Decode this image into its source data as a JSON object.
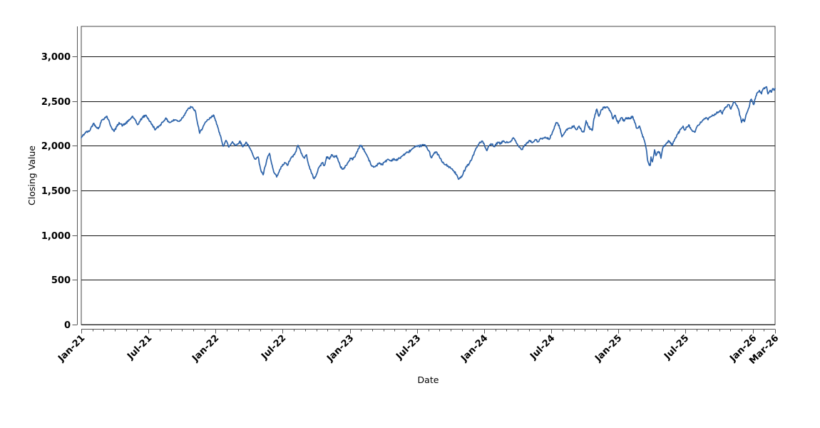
{
  "chart_data": {
    "type": "line",
    "title": "",
    "xlabel": "Date",
    "ylabel": "Closing Value",
    "x_unit": "months_since_Jan_2021",
    "xlim": [
      0,
      62
    ],
    "ylim": [
      0,
      3335
    ],
    "grid": "horizontal-only",
    "legend_position": "none",
    "colors": {
      "series": "#2d63a9",
      "grid": "#111111",
      "border": "#444444",
      "axis": "#555555",
      "text": "#000000",
      "background": "#ffffff"
    },
    "x_ticks": [
      [
        0,
        "Jan-21"
      ],
      [
        6,
        "Jul-21"
      ],
      [
        12,
        "Jan-22"
      ],
      [
        18,
        "Jul-22"
      ],
      [
        24,
        "Jan-23"
      ],
      [
        30,
        "Jul-23"
      ],
      [
        36,
        "Jan-24"
      ],
      [
        42,
        "Jul-24"
      ],
      [
        48,
        "Jan-25"
      ],
      [
        54,
        "Jul-25"
      ],
      [
        60,
        "Jan-26"
      ],
      [
        62,
        "Mar-26"
      ]
    ],
    "x_minor_tick_every": 1,
    "y_ticks": [
      [
        0,
        "0"
      ],
      [
        500,
        "500"
      ],
      [
        1000,
        "1,000"
      ],
      [
        1500,
        "1,500"
      ],
      [
        2000,
        "2,000"
      ],
      [
        2500,
        "2,500"
      ],
      [
        3000,
        "3,000"
      ]
    ],
    "series": [
      {
        "name": "Closing Value",
        "color": "#2d63a9",
        "points": [
          [
            0.0,
            2090
          ],
          [
            0.38,
            2150
          ],
          [
            0.7,
            2160
          ],
          [
            1.08,
            2250
          ],
          [
            1.53,
            2190
          ],
          [
            1.85,
            2290
          ],
          [
            2.29,
            2330
          ],
          [
            2.68,
            2210
          ],
          [
            2.93,
            2160
          ],
          [
            3.38,
            2260
          ],
          [
            3.7,
            2225
          ],
          [
            4.21,
            2275
          ],
          [
            4.59,
            2330
          ],
          [
            5.03,
            2235
          ],
          [
            5.48,
            2320
          ],
          [
            5.8,
            2340
          ],
          [
            6.24,
            2250
          ],
          [
            6.63,
            2180
          ],
          [
            7.07,
            2235
          ],
          [
            7.52,
            2305
          ],
          [
            7.9,
            2260
          ],
          [
            8.35,
            2290
          ],
          [
            8.79,
            2275
          ],
          [
            9.18,
            2340
          ],
          [
            9.43,
            2395
          ],
          [
            9.81,
            2435
          ],
          [
            10.0,
            2415
          ],
          [
            10.19,
            2390
          ],
          [
            10.39,
            2250
          ],
          [
            10.58,
            2140
          ],
          [
            10.9,
            2220
          ],
          [
            11.21,
            2275
          ],
          [
            11.53,
            2310
          ],
          [
            11.85,
            2340
          ],
          [
            12.04,
            2275
          ],
          [
            12.3,
            2155
          ],
          [
            12.49,
            2090
          ],
          [
            12.68,
            1995
          ],
          [
            12.93,
            2060
          ],
          [
            13.19,
            1985
          ],
          [
            13.51,
            2045
          ],
          [
            13.83,
            2000
          ],
          [
            14.15,
            2050
          ],
          [
            14.46,
            1990
          ],
          [
            14.72,
            2040
          ],
          [
            15.04,
            1975
          ],
          [
            15.29,
            1915
          ],
          [
            15.55,
            1850
          ],
          [
            15.8,
            1875
          ],
          [
            16.06,
            1720
          ],
          [
            16.25,
            1675
          ],
          [
            16.44,
            1770
          ],
          [
            16.63,
            1860
          ],
          [
            16.82,
            1915
          ],
          [
            17.01,
            1800
          ],
          [
            17.2,
            1705
          ],
          [
            17.46,
            1650
          ],
          [
            17.65,
            1700
          ],
          [
            17.91,
            1770
          ],
          [
            18.22,
            1810
          ],
          [
            18.41,
            1780
          ],
          [
            18.73,
            1860
          ],
          [
            19.05,
            1900
          ],
          [
            19.37,
            2005
          ],
          [
            19.69,
            1915
          ],
          [
            19.94,
            1860
          ],
          [
            20.13,
            1900
          ],
          [
            20.33,
            1780
          ],
          [
            20.58,
            1690
          ],
          [
            20.77,
            1635
          ],
          [
            20.96,
            1660
          ],
          [
            21.22,
            1755
          ],
          [
            21.54,
            1810
          ],
          [
            21.73,
            1780
          ],
          [
            21.92,
            1875
          ],
          [
            22.17,
            1850
          ],
          [
            22.36,
            1900
          ],
          [
            22.56,
            1875
          ],
          [
            22.81,
            1890
          ],
          [
            23.0,
            1820
          ],
          [
            23.19,
            1755
          ],
          [
            23.45,
            1740
          ],
          [
            23.64,
            1780
          ],
          [
            23.83,
            1810
          ],
          [
            24.08,
            1860
          ],
          [
            24.28,
            1850
          ],
          [
            24.59,
            1915
          ],
          [
            24.91,
            2005
          ],
          [
            25.1,
            1990
          ],
          [
            25.36,
            1930
          ],
          [
            25.61,
            1870
          ],
          [
            25.87,
            1790
          ],
          [
            26.12,
            1760
          ],
          [
            26.38,
            1780
          ],
          [
            26.63,
            1810
          ],
          [
            26.89,
            1790
          ],
          [
            27.14,
            1820
          ],
          [
            27.4,
            1850
          ],
          [
            27.65,
            1830
          ],
          [
            27.91,
            1855
          ],
          [
            28.16,
            1835
          ],
          [
            28.42,
            1860
          ],
          [
            28.67,
            1885
          ],
          [
            28.93,
            1910
          ],
          [
            29.18,
            1925
          ],
          [
            29.44,
            1950
          ],
          [
            29.69,
            1975
          ],
          [
            30.01,
            1990
          ],
          [
            30.33,
            2000
          ],
          [
            30.65,
            2010
          ],
          [
            30.84,
            1985
          ],
          [
            31.09,
            1940
          ],
          [
            31.28,
            1865
          ],
          [
            31.47,
            1905
          ],
          [
            31.73,
            1930
          ],
          [
            31.99,
            1880
          ],
          [
            32.24,
            1820
          ],
          [
            32.49,
            1790
          ],
          [
            32.75,
            1775
          ],
          [
            33.01,
            1750
          ],
          [
            33.26,
            1720
          ],
          [
            33.52,
            1680
          ],
          [
            33.71,
            1625
          ],
          [
            33.9,
            1640
          ],
          [
            34.15,
            1700
          ],
          [
            34.41,
            1770
          ],
          [
            34.66,
            1800
          ],
          [
            34.92,
            1860
          ],
          [
            35.17,
            1940
          ],
          [
            35.43,
            2000
          ],
          [
            35.62,
            2040
          ],
          [
            35.87,
            2050
          ],
          [
            36.06,
            1990
          ],
          [
            36.25,
            1945
          ],
          [
            36.51,
            2010
          ],
          [
            36.7,
            2015
          ],
          [
            36.95,
            1990
          ],
          [
            37.21,
            2040
          ],
          [
            37.46,
            2020
          ],
          [
            37.72,
            2055
          ],
          [
            37.97,
            2035
          ],
          [
            38.23,
            2040
          ],
          [
            38.48,
            2060
          ],
          [
            38.61,
            2090
          ],
          [
            38.87,
            2035
          ],
          [
            39.12,
            1985
          ],
          [
            39.38,
            1960
          ],
          [
            39.63,
            2010
          ],
          [
            39.89,
            2040
          ],
          [
            40.08,
            2060
          ],
          [
            40.33,
            2035
          ],
          [
            40.59,
            2070
          ],
          [
            40.84,
            2045
          ],
          [
            41.1,
            2080
          ],
          [
            41.35,
            2085
          ],
          [
            41.61,
            2090
          ],
          [
            41.8,
            2070
          ],
          [
            41.99,
            2120
          ],
          [
            42.25,
            2190
          ],
          [
            42.44,
            2260
          ],
          [
            42.69,
            2230
          ],
          [
            42.95,
            2100
          ],
          [
            43.2,
            2150
          ],
          [
            43.52,
            2195
          ],
          [
            43.77,
            2195
          ],
          [
            44.03,
            2225
          ],
          [
            44.28,
            2180
          ],
          [
            44.48,
            2220
          ],
          [
            44.73,
            2160
          ],
          [
            44.92,
            2155
          ],
          [
            45.11,
            2280
          ],
          [
            45.3,
            2220
          ],
          [
            45.5,
            2185
          ],
          [
            45.69,
            2180
          ],
          [
            45.81,
            2300
          ],
          [
            46.07,
            2410
          ],
          [
            46.26,
            2330
          ],
          [
            46.45,
            2400
          ],
          [
            46.77,
            2435
          ],
          [
            47.09,
            2420
          ],
          [
            47.34,
            2370
          ],
          [
            47.53,
            2300
          ],
          [
            47.72,
            2340
          ],
          [
            47.98,
            2250
          ],
          [
            48.17,
            2300
          ],
          [
            48.3,
            2315
          ],
          [
            48.49,
            2275
          ],
          [
            48.68,
            2315
          ],
          [
            48.87,
            2300
          ],
          [
            49.06,
            2310
          ],
          [
            49.25,
            2330
          ],
          [
            49.45,
            2260
          ],
          [
            49.64,
            2195
          ],
          [
            49.89,
            2220
          ],
          [
            50.08,
            2140
          ],
          [
            50.27,
            2075
          ],
          [
            50.4,
            2020
          ],
          [
            50.53,
            1930
          ],
          [
            50.59,
            1850
          ],
          [
            50.72,
            1795
          ],
          [
            50.85,
            1780
          ],
          [
            50.91,
            1875
          ],
          [
            51.04,
            1820
          ],
          [
            51.17,
            1900
          ],
          [
            51.23,
            1955
          ],
          [
            51.36,
            1890
          ],
          [
            51.49,
            1930
          ],
          [
            51.68,
            1930
          ],
          [
            51.8,
            1860
          ],
          [
            51.99,
            1985
          ],
          [
            52.19,
            2010
          ],
          [
            52.38,
            2040
          ],
          [
            52.51,
            2050
          ],
          [
            52.7,
            2020
          ],
          [
            52.82,
            2010
          ],
          [
            53.02,
            2070
          ],
          [
            53.14,
            2090
          ],
          [
            53.27,
            2130
          ],
          [
            53.46,
            2160
          ],
          [
            53.65,
            2200
          ],
          [
            53.78,
            2220
          ],
          [
            53.91,
            2175
          ],
          [
            54.1,
            2210
          ],
          [
            54.29,
            2235
          ],
          [
            54.48,
            2185
          ],
          [
            54.67,
            2160
          ],
          [
            54.86,
            2155
          ],
          [
            55.05,
            2220
          ],
          [
            55.25,
            2240
          ],
          [
            55.37,
            2260
          ],
          [
            55.56,
            2290
          ],
          [
            55.82,
            2315
          ],
          [
            56.01,
            2290
          ],
          [
            56.2,
            2320
          ],
          [
            56.45,
            2340
          ],
          [
            56.64,
            2355
          ],
          [
            56.77,
            2370
          ],
          [
            56.96,
            2380
          ],
          [
            57.09,
            2395
          ],
          [
            57.28,
            2355
          ],
          [
            57.41,
            2400
          ],
          [
            57.6,
            2435
          ],
          [
            57.86,
            2460
          ],
          [
            58.05,
            2410
          ],
          [
            58.24,
            2470
          ],
          [
            58.37,
            2490
          ],
          [
            58.56,
            2450
          ],
          [
            58.69,
            2420
          ],
          [
            58.88,
            2330
          ],
          [
            59.0,
            2260
          ],
          [
            59.13,
            2300
          ],
          [
            59.26,
            2270
          ],
          [
            59.45,
            2360
          ],
          [
            59.64,
            2420
          ],
          [
            59.83,
            2515
          ],
          [
            59.96,
            2500
          ],
          [
            60.09,
            2460
          ],
          [
            60.28,
            2555
          ],
          [
            60.47,
            2600
          ],
          [
            60.6,
            2620
          ],
          [
            60.79,
            2580
          ],
          [
            60.92,
            2635
          ],
          [
            61.11,
            2650
          ],
          [
            61.24,
            2660
          ],
          [
            61.36,
            2580
          ],
          [
            61.56,
            2620
          ],
          [
            61.68,
            2600
          ],
          [
            61.81,
            2640
          ],
          [
            61.94,
            2625
          ],
          [
            62.0,
            2640
          ]
        ]
      }
    ]
  }
}
